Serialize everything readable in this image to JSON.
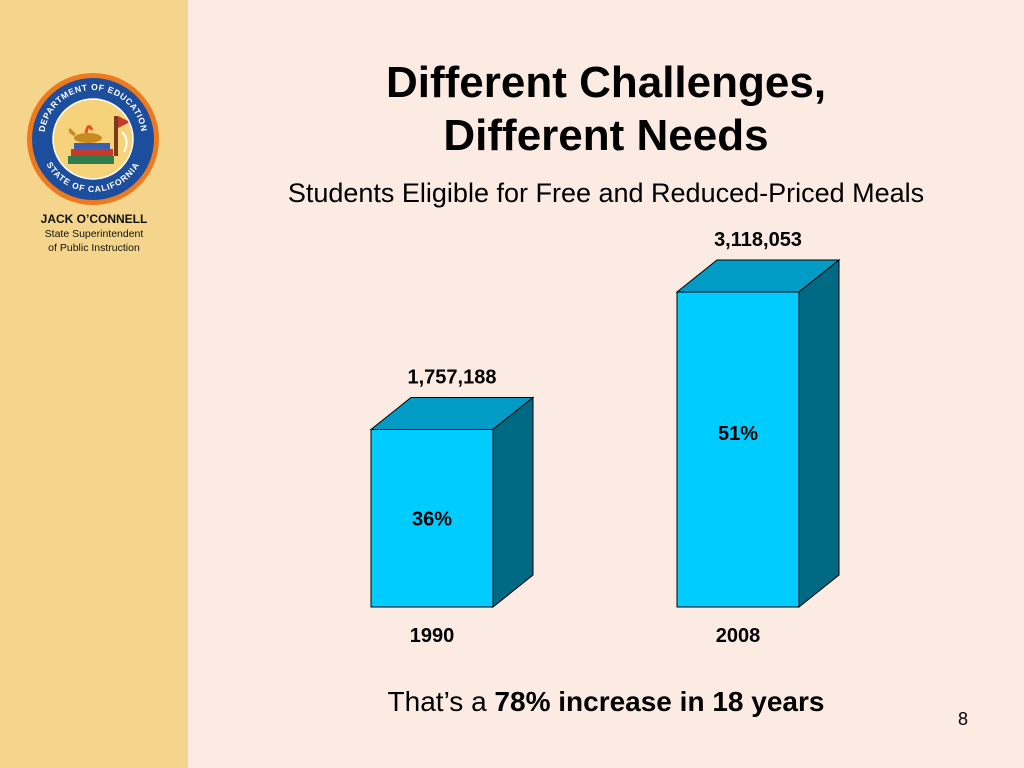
{
  "sidebar": {
    "logo_text_top": "DEPARTMENT OF EDUCATION",
    "logo_text_bottom": "STATE OF CALIFORNIA",
    "name": "JACK O’CONNELL",
    "role_line1": "State Superintendent",
    "role_line2": "of Public Instruction"
  },
  "slide": {
    "title_line1": "Different Challenges,",
    "title_line2": "Different Needs",
    "subtitle": "Students Eligible for Free and Reduced-Priced Meals",
    "footer_prefix": "That’s a ",
    "footer_bold": "78% increase in 18 years",
    "page_number": "8"
  },
  "colors": {
    "sidebar": "#f5d58b",
    "background": "#fbebe2",
    "bar_front": "#00ccff",
    "bar_top": "#009cc6",
    "bar_side": "#006a84"
  },
  "chart_data": {
    "type": "bar",
    "categories": [
      "1990",
      "2008"
    ],
    "values": [
      1757188,
      3118053
    ],
    "value_labels": [
      "1,757,188",
      "3,118,053"
    ],
    "percent_labels": [
      "36%",
      "51%"
    ],
    "title": "",
    "xlabel": "",
    "ylabel": "",
    "ylim": [
      0,
      3118053
    ],
    "grid": false,
    "legend": "none",
    "style": "3d-column"
  }
}
